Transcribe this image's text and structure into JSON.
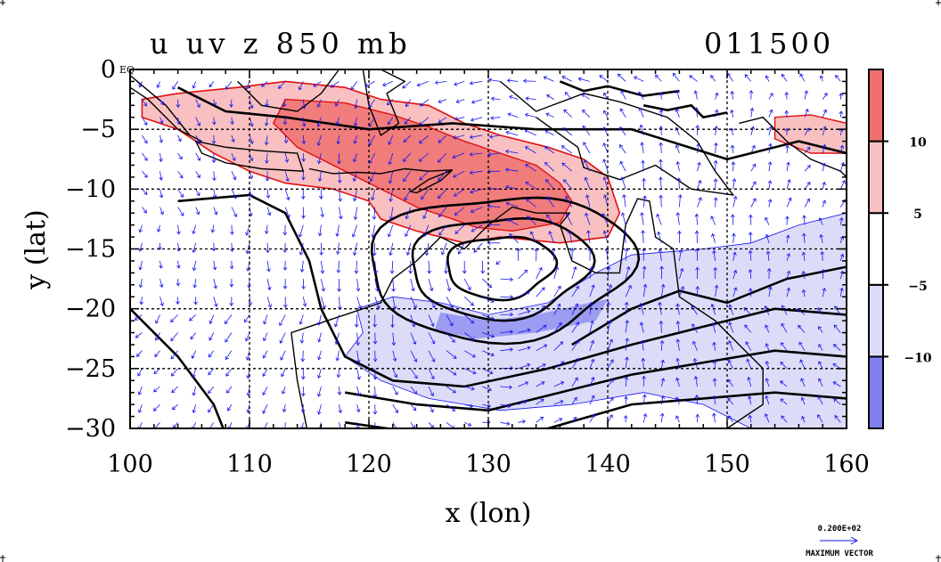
{
  "page": {
    "title_left": "u uv z 850 mb",
    "title_right": "011500",
    "eq_label": "EQ"
  },
  "chart_data": {
    "type": "heatmap",
    "title": "u uv z 850 mb",
    "time_label": "011500",
    "xlabel": "x (lon)",
    "ylabel": "y (lat)",
    "xlim": [
      100,
      160
    ],
    "ylim": [
      -30,
      0
    ],
    "x_ticks": [
      100,
      110,
      120,
      130,
      140,
      150,
      160
    ],
    "x_tick_labels": [
      "100",
      "110",
      "120",
      "130",
      "140",
      "150",
      "160"
    ],
    "y_ticks": [
      0,
      -5,
      -10,
      -15,
      -20,
      -25,
      -30
    ],
    "y_tick_labels": [
      "0",
      "−5",
      "−10",
      "−15",
      "−20",
      "−25",
      "−30"
    ],
    "grid": true,
    "shading_variable": "u",
    "colorbar": {
      "levels": [
        -10,
        -5,
        5,
        10
      ],
      "labels": [
        "−10",
        "−5",
        "5",
        "10"
      ],
      "colors": [
        "#8080f0",
        "#dcdcf8",
        "#ffffff",
        "#f8c0c0",
        "#f07070"
      ]
    },
    "westerly_regions": [
      {
        "level": 5,
        "lon": [
          101,
          140
        ],
        "lat": [
          -2,
          -14
        ],
        "color": "#f8c0c0"
      },
      {
        "level": 10,
        "lon": [
          112,
          137
        ],
        "lat": [
          -3.5,
          -13
        ],
        "color": "#f07070"
      },
      {
        "level": 5,
        "lon": [
          154,
          160
        ],
        "lat": [
          -4,
          -7
        ],
        "color": "#f8c0c0"
      }
    ],
    "easterly_regions": [
      {
        "level": -5,
        "lon": [
          119,
          160
        ],
        "lat": [
          -15,
          -30
        ],
        "color": "#dcdcf8"
      },
      {
        "level": -10,
        "lon": [
          126,
          140
        ],
        "lat": [
          -20,
          -22
        ],
        "color": "#8080f0"
      }
    ],
    "geopotential_low_center": {
      "lon": 131,
      "lat": -16
    },
    "vector_field": "uv",
    "vector_color": "#1515f0",
    "reference_vector_value": "0.200E+02",
    "reference_vector_label": "MAXIMUM VECTOR"
  }
}
